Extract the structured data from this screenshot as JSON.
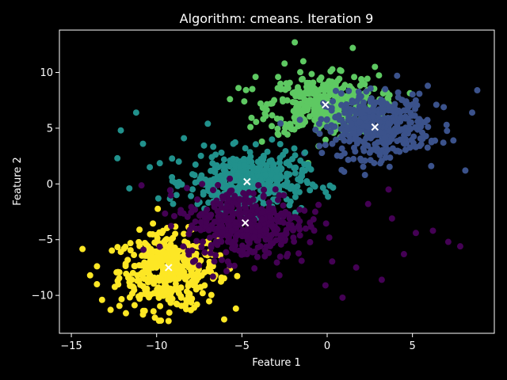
{
  "chart_data": {
    "type": "scatter",
    "title": "Algorithm: cmeans. Iteration 9",
    "xlabel": "Feature 1",
    "ylabel": "Feature 2",
    "xlim": [
      -15.7,
      9.8
    ],
    "ylim": [
      -13.4,
      13.8
    ],
    "xticks": [
      -15,
      -10,
      -5,
      0,
      5
    ],
    "yticks": [
      -10,
      -5,
      0,
      5,
      10
    ],
    "grid": false,
    "background": "#000000",
    "axis_color": "#ffffff",
    "series": [
      {
        "color": "#fde725",
        "center": [
          -9.3,
          -7.8
        ],
        "approx_point_count": 400,
        "spread": [
          1.45,
          1.7
        ],
        "sample_points": [
          [
            -13.9,
            -8.2
          ],
          [
            -13.5,
            -9.0
          ],
          [
            -13.2,
            -10.4
          ],
          [
            -12.7,
            -11.3
          ],
          [
            -12.1,
            -6.1
          ],
          [
            -11.8,
            -11.6
          ],
          [
            -11.0,
            -10.3
          ],
          [
            -10.5,
            -5.6
          ],
          [
            -10.1,
            -12.0
          ],
          [
            -9.7,
            -4.4
          ],
          [
            -9.3,
            -12.3
          ],
          [
            -8.8,
            -10.8
          ],
          [
            -8.2,
            -5.3
          ],
          [
            -7.8,
            -11.1
          ],
          [
            -7.3,
            -9.8
          ],
          [
            -6.9,
            -7.0
          ],
          [
            -6.2,
            -8.4
          ],
          [
            -5.7,
            -7.6
          ],
          [
            -9.0,
            -6.4
          ],
          [
            -10.3,
            -8.6
          ]
        ]
      },
      {
        "color": "#5ec962",
        "center": [
          -0.2,
          7.1
        ],
        "approx_point_count": 400,
        "spread": [
          1.6,
          1.3
        ],
        "sample_points": [
          [
            -5.7,
            7.6
          ],
          [
            -5.2,
            8.6
          ],
          [
            -4.2,
            9.6
          ],
          [
            -3.6,
            6.1
          ],
          [
            -2.5,
            10.8
          ],
          [
            -1.9,
            12.7
          ],
          [
            -1.4,
            11.0
          ],
          [
            -0.6,
            4.8
          ],
          [
            0.2,
            10.1
          ],
          [
            1.5,
            12.2
          ],
          [
            2.0,
            9.4
          ],
          [
            2.8,
            10.5
          ],
          [
            3.5,
            8.2
          ],
          [
            -2.9,
            4.5
          ],
          [
            0.8,
            5.6
          ],
          [
            -4.5,
            5.1
          ],
          [
            1.2,
            7.3
          ],
          [
            -1.1,
            8.5
          ],
          [
            -3.3,
            7.2
          ],
          [
            0.5,
            8.9
          ]
        ]
      },
      {
        "color": "#3b528b",
        "center": [
          2.9,
          5.2
        ],
        "approx_point_count": 400,
        "spread": [
          1.5,
          1.4
        ],
        "sample_points": [
          [
            0.3,
            3.6
          ],
          [
            0.8,
            2.5
          ],
          [
            1.3,
            4.3
          ],
          [
            1.9,
            7.7
          ],
          [
            2.5,
            2.8
          ],
          [
            3.4,
            8.5
          ],
          [
            4.1,
            9.7
          ],
          [
            4.6,
            4.9
          ],
          [
            5.2,
            3.3
          ],
          [
            5.9,
            8.8
          ],
          [
            6.4,
            7.1
          ],
          [
            7.0,
            5.3
          ],
          [
            7.4,
            3.9
          ],
          [
            8.1,
            1.2
          ],
          [
            8.8,
            8.4
          ],
          [
            8.5,
            6.4
          ],
          [
            6.1,
            1.6
          ],
          [
            2.3,
            4.6
          ],
          [
            3.9,
            6.5
          ],
          [
            1.6,
            5.9
          ]
        ]
      },
      {
        "color": "#21918c",
        "center": [
          -4.7,
          0.2
        ],
        "approx_point_count": 400,
        "spread": [
          1.7,
          1.3
        ],
        "sample_points": [
          [
            -12.3,
            2.3
          ],
          [
            -12.1,
            4.8
          ],
          [
            -11.6,
            -0.4
          ],
          [
            -11.2,
            6.4
          ],
          [
            -10.8,
            3.6
          ],
          [
            -9.9,
            -1.3
          ],
          [
            -9.1,
            0.6
          ],
          [
            -8.4,
            4.1
          ],
          [
            -7.6,
            -1.8
          ],
          [
            -7.0,
            5.4
          ],
          [
            -6.2,
            2.8
          ],
          [
            -5.5,
            -0.9
          ],
          [
            -4.8,
            3.2
          ],
          [
            -4.1,
            1.4
          ],
          [
            -3.3,
            0.8
          ],
          [
            -2.6,
            2.6
          ],
          [
            -1.3,
            1.2
          ],
          [
            -8.7,
            2.0
          ],
          [
            -10.4,
            1.5
          ],
          [
            -6.8,
            0.3
          ]
        ]
      },
      {
        "color": "#440154",
        "center": [
          -4.8,
          -3.5
        ],
        "approx_point_count": 400,
        "spread": [
          1.8,
          1.6
        ],
        "sample_points": [
          [
            -8.6,
            -2.6
          ],
          [
            -5.6,
            -4.2
          ],
          [
            -4.7,
            -6.3
          ],
          [
            -3.6,
            -5.0
          ],
          [
            -2.8,
            -8.2
          ],
          [
            -2.1,
            -3.7
          ],
          [
            -1.5,
            -6.9
          ],
          [
            -0.7,
            -2.5
          ],
          [
            -0.1,
            -9.1
          ],
          [
            0.9,
            -10.2
          ],
          [
            1.7,
            -7.5
          ],
          [
            2.4,
            -1.8
          ],
          [
            3.2,
            -8.6
          ],
          [
            3.8,
            -3.1
          ],
          [
            4.5,
            -6.3
          ],
          [
            5.2,
            -4.4
          ],
          [
            6.2,
            -4.2
          ],
          [
            7.1,
            -5.2
          ],
          [
            7.8,
            -5.6
          ],
          [
            3.6,
            -0.5
          ]
        ]
      }
    ],
    "centroids": [
      [
        -9.3,
        -7.5
      ],
      [
        -0.1,
        7.1
      ],
      [
        2.8,
        5.1
      ],
      [
        -4.7,
        0.2
      ],
      [
        -4.8,
        -3.5
      ]
    ],
    "centroid_color": "#ffffff"
  }
}
